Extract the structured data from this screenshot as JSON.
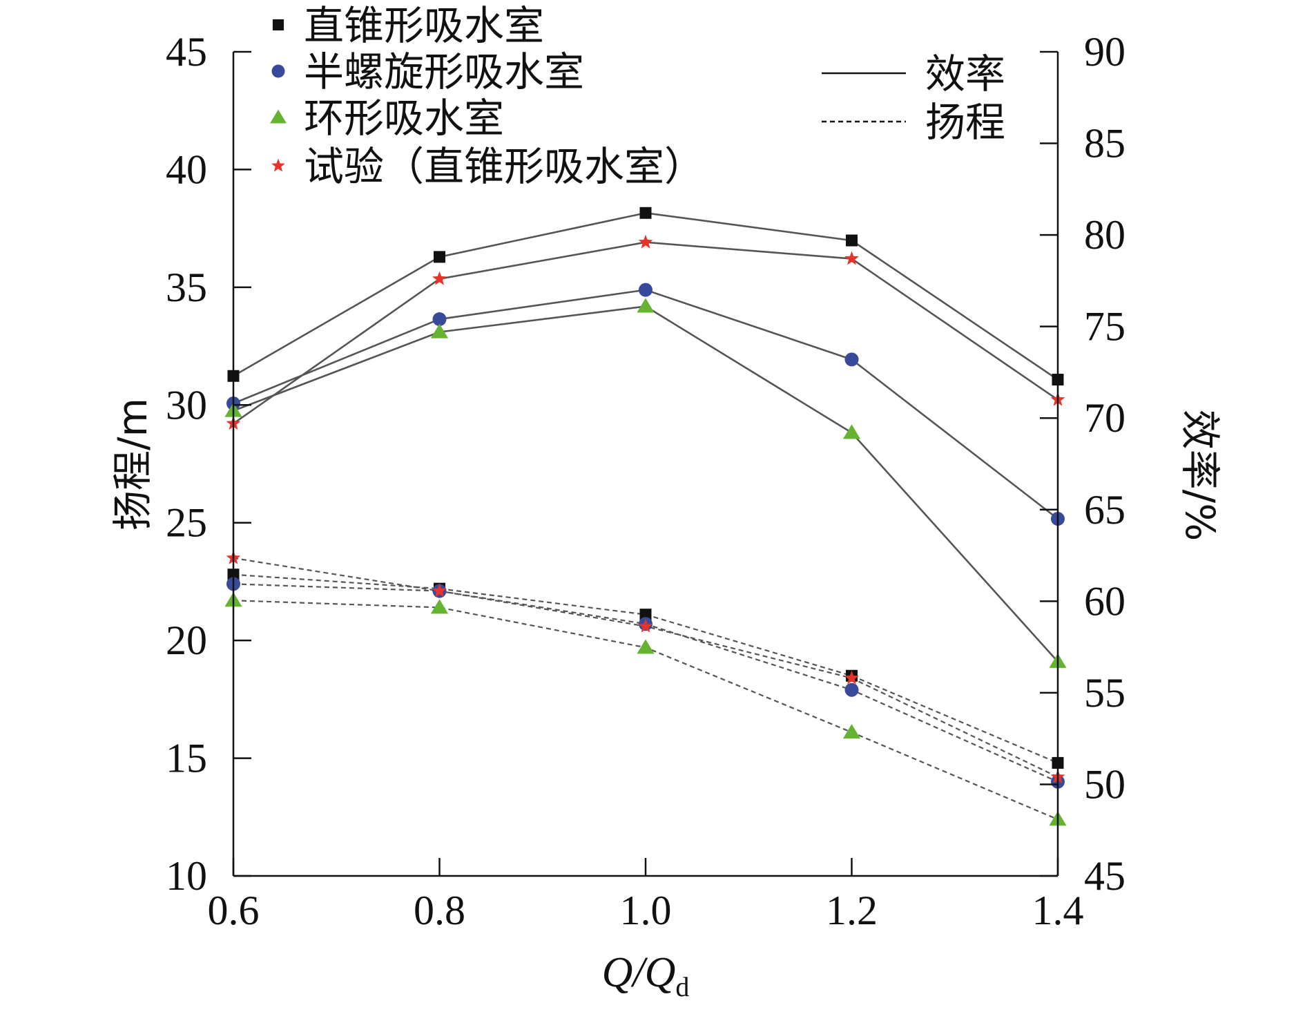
{
  "chart_data": {
    "type": "line",
    "x": [
      0.6,
      0.8,
      1.0,
      1.2,
      1.4
    ],
    "xlabel": {
      "main": "Q/Q",
      "sub": "d"
    },
    "ylabel_left": "扬程/m",
    "ylabel_right": "效率/%",
    "xlim": [
      0.6,
      1.4
    ],
    "ylim_left": [
      10,
      45
    ],
    "ylim_right": [
      45,
      90
    ],
    "xticks": [
      "0.6",
      "0.8",
      "1.0",
      "1.2",
      "1.4"
    ],
    "yticks_left": [
      "10",
      "15",
      "20",
      "25",
      "30",
      "35",
      "40",
      "45"
    ],
    "yticks_right": [
      "45",
      "50",
      "55",
      "60",
      "65",
      "70",
      "75",
      "80",
      "85",
      "90"
    ],
    "series": [
      {
        "name": "直锥形吸水室",
        "marker": "square",
        "color": "#111111",
        "efficiency": [
          72.3,
          78.8,
          81.2,
          79.7,
          72.1
        ],
        "head": [
          22.8,
          22.2,
          21.1,
          18.5,
          14.8
        ]
      },
      {
        "name": "半螺旋形吸水室",
        "marker": "circle",
        "color": "#3a4a9a",
        "efficiency": [
          70.8,
          75.4,
          77.0,
          73.2,
          64.5
        ],
        "head": [
          22.4,
          22.1,
          20.7,
          17.9,
          14.0
        ]
      },
      {
        "name": "环形吸水室",
        "marker": "triangle",
        "color": "#66b332",
        "efficiency": [
          70.4,
          74.7,
          76.1,
          69.2,
          56.7
        ],
        "head": [
          21.7,
          21.4,
          19.7,
          16.1,
          12.4
        ]
      },
      {
        "name": "试验（直锥形吸水室）",
        "marker": "star",
        "color": "#e8332a",
        "efficiency": [
          69.7,
          77.6,
          79.6,
          78.7,
          71.0
        ],
        "head": [
          23.5,
          22.1,
          20.6,
          18.4,
          14.2
        ]
      }
    ],
    "line_legend": [
      {
        "label": "效率",
        "style": "solid"
      },
      {
        "label": "扬程",
        "style": "dashed"
      }
    ],
    "line_color": "#555555"
  }
}
